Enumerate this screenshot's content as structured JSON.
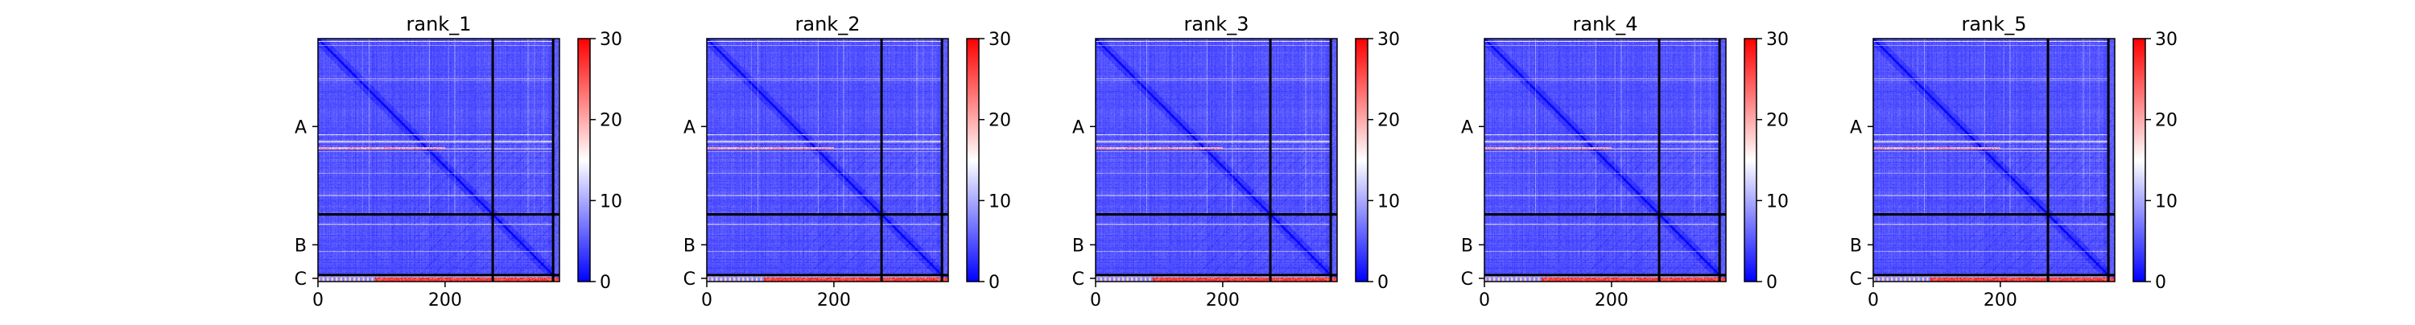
{
  "chart_data": [
    {
      "type": "heatmap",
      "title": "rank_1",
      "x_ticks": [
        0,
        200
      ],
      "xlim": [
        0,
        380
      ],
      "ylim": [
        0,
        380
      ],
      "y_sections": [
        "A",
        "B",
        "C"
      ],
      "section_boundaries": [
        275,
        370
      ],
      "colorbar": {
        "min": 0,
        "max": 30,
        "ticks": [
          0,
          10,
          20,
          30
        ],
        "colormap": "bwr"
      },
      "colors": {
        "low": "#0000ff",
        "mid": "#ffffff",
        "high": "#ff0000"
      }
    },
    {
      "type": "heatmap",
      "title": "rank_2",
      "x_ticks": [
        0,
        200
      ],
      "xlim": [
        0,
        380
      ],
      "ylim": [
        0,
        380
      ],
      "y_sections": [
        "A",
        "B",
        "C"
      ],
      "section_boundaries": [
        275,
        370
      ],
      "colorbar": {
        "min": 0,
        "max": 30,
        "ticks": [
          0,
          10,
          20,
          30
        ],
        "colormap": "bwr"
      },
      "colors": {
        "low": "#0000ff",
        "mid": "#ffffff",
        "high": "#ff0000"
      }
    },
    {
      "type": "heatmap",
      "title": "rank_3",
      "x_ticks": [
        0,
        200
      ],
      "xlim": [
        0,
        380
      ],
      "ylim": [
        0,
        380
      ],
      "y_sections": [
        "A",
        "B",
        "C"
      ],
      "section_boundaries": [
        275,
        370
      ],
      "colorbar": {
        "min": 0,
        "max": 30,
        "ticks": [
          0,
          10,
          20,
          30
        ],
        "colormap": "bwr"
      },
      "colors": {
        "low": "#0000ff",
        "mid": "#ffffff",
        "high": "#ff0000"
      }
    },
    {
      "type": "heatmap",
      "title": "rank_4",
      "x_ticks": [
        0,
        200
      ],
      "xlim": [
        0,
        380
      ],
      "ylim": [
        0,
        380
      ],
      "y_sections": [
        "A",
        "B",
        "C"
      ],
      "section_boundaries": [
        275,
        370
      ],
      "colorbar": {
        "min": 0,
        "max": 30,
        "ticks": [
          0,
          10,
          20,
          30
        ],
        "colormap": "bwr"
      },
      "colors": {
        "low": "#0000ff",
        "mid": "#ffffff",
        "high": "#ff0000"
      }
    },
    {
      "type": "heatmap",
      "title": "rank_5",
      "x_ticks": [
        0,
        200
      ],
      "xlim": [
        0,
        380
      ],
      "ylim": [
        0,
        380
      ],
      "y_sections": [
        "A",
        "B",
        "C"
      ],
      "section_boundaries": [
        275,
        370
      ],
      "colorbar": {
        "min": 0,
        "max": 30,
        "ticks": [
          0,
          10,
          20,
          30
        ],
        "colormap": "bwr"
      },
      "colors": {
        "low": "#0000ff",
        "mid": "#ffffff",
        "high": "#ff0000"
      }
    }
  ]
}
